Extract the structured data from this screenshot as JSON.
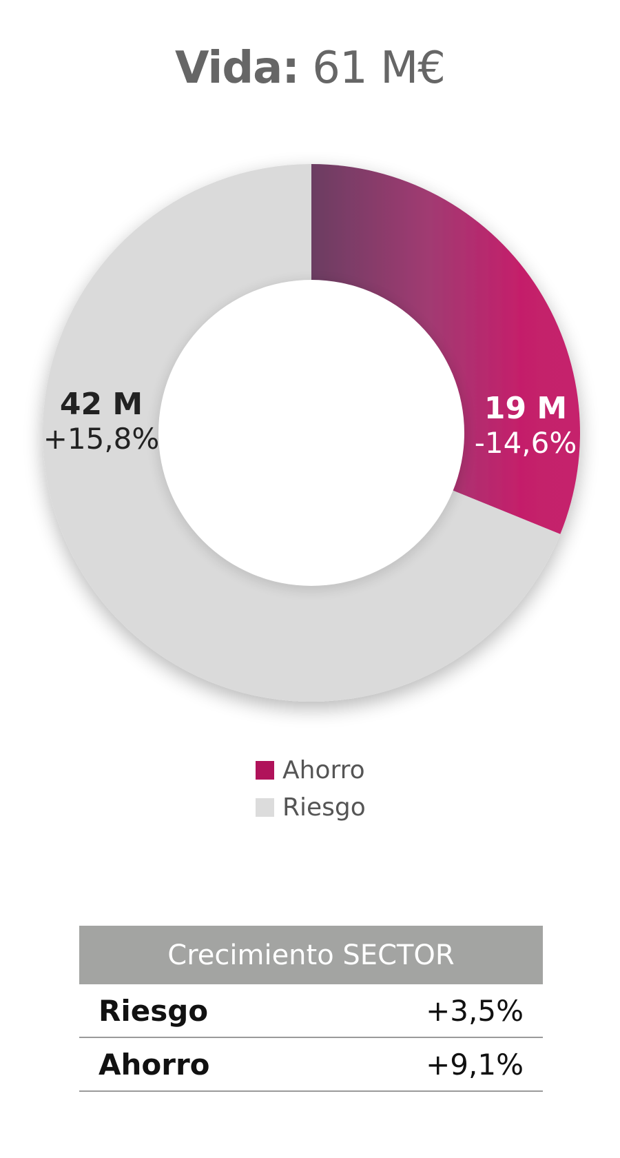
{
  "header": {
    "title_bold": "Vida:",
    "title_value": "61 M€"
  },
  "chart_data": {
    "type": "pie",
    "variant": "donut",
    "total_label": "61 M€",
    "slices": [
      {
        "name": "Ahorro",
        "value": 19,
        "value_label": "19 M",
        "change_label": "-14,6%",
        "color": "#c2185b",
        "gradient_start": "#6e3b63"
      },
      {
        "name": "Riesgo",
        "value": 42,
        "value_label": "42 M",
        "change_label": "+15,8%",
        "color": "#dadada"
      }
    ],
    "legend": [
      "Ahorro",
      "Riesgo"
    ],
    "legend_placement": "bottom-center"
  },
  "legend": {
    "items": [
      {
        "label": "Ahorro",
        "color": "#b0125a"
      },
      {
        "label": "Riesgo",
        "color": "#dcdcdc"
      }
    ]
  },
  "sector_table": {
    "header": "Crecimiento SECTOR",
    "rows": [
      {
        "label": "Riesgo",
        "value": "+3,5%"
      },
      {
        "label": "Ahorro",
        "value": "+9,1%"
      }
    ]
  }
}
